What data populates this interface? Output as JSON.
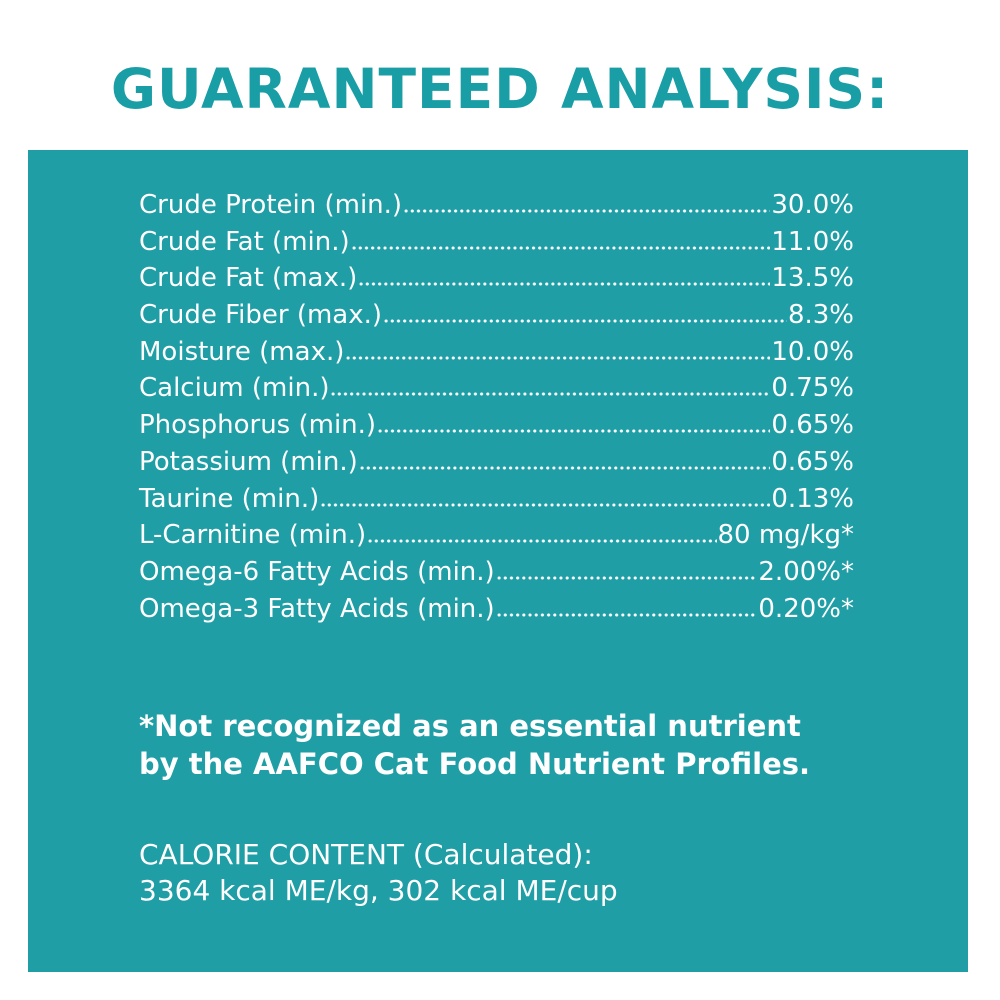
{
  "title": "GUARANTEED ANALYSIS:",
  "analysis": [
    {
      "label": "Crude Protein (min.)",
      "value": "30.0%"
    },
    {
      "label": "Crude Fat (min.)",
      "value": "11.0%"
    },
    {
      "label": "Crude Fat (max.)",
      "value": "13.5%"
    },
    {
      "label": "Crude Fiber (max.)",
      "value": "8.3%"
    },
    {
      "label": "Moisture (max.)",
      "value": "10.0%"
    },
    {
      "label": "Calcium (min.)",
      "value": "0.75%"
    },
    {
      "label": "Phosphorus (min.)",
      "value": "0.65%"
    },
    {
      "label": "Potassium (min.)",
      "value": "0.65%"
    },
    {
      "label": "Taurine (min.)",
      "value": "0.13%"
    },
    {
      "label": "L-Carnitine (min.)",
      "value": "80 mg/kg*"
    },
    {
      "label": "Omega-6 Fatty Acids (min.)",
      "value": "2.00%*"
    },
    {
      "label": "Omega-3 Fatty Acids (min.)",
      "value": "0.20%*"
    }
  ],
  "footnote": {
    "line1": "*Not recognized as an essential nutrient",
    "line2": "by the AAFCO Cat Food Nutrient Profiles."
  },
  "calorie": {
    "heading": "CALORIE CONTENT (Calculated):",
    "values": "3364 kcal ME/kg, 302 kcal ME/cup"
  },
  "colors": {
    "title": "#1a9ea6",
    "panel": "#1f9ea6",
    "text": "#ffffff"
  }
}
